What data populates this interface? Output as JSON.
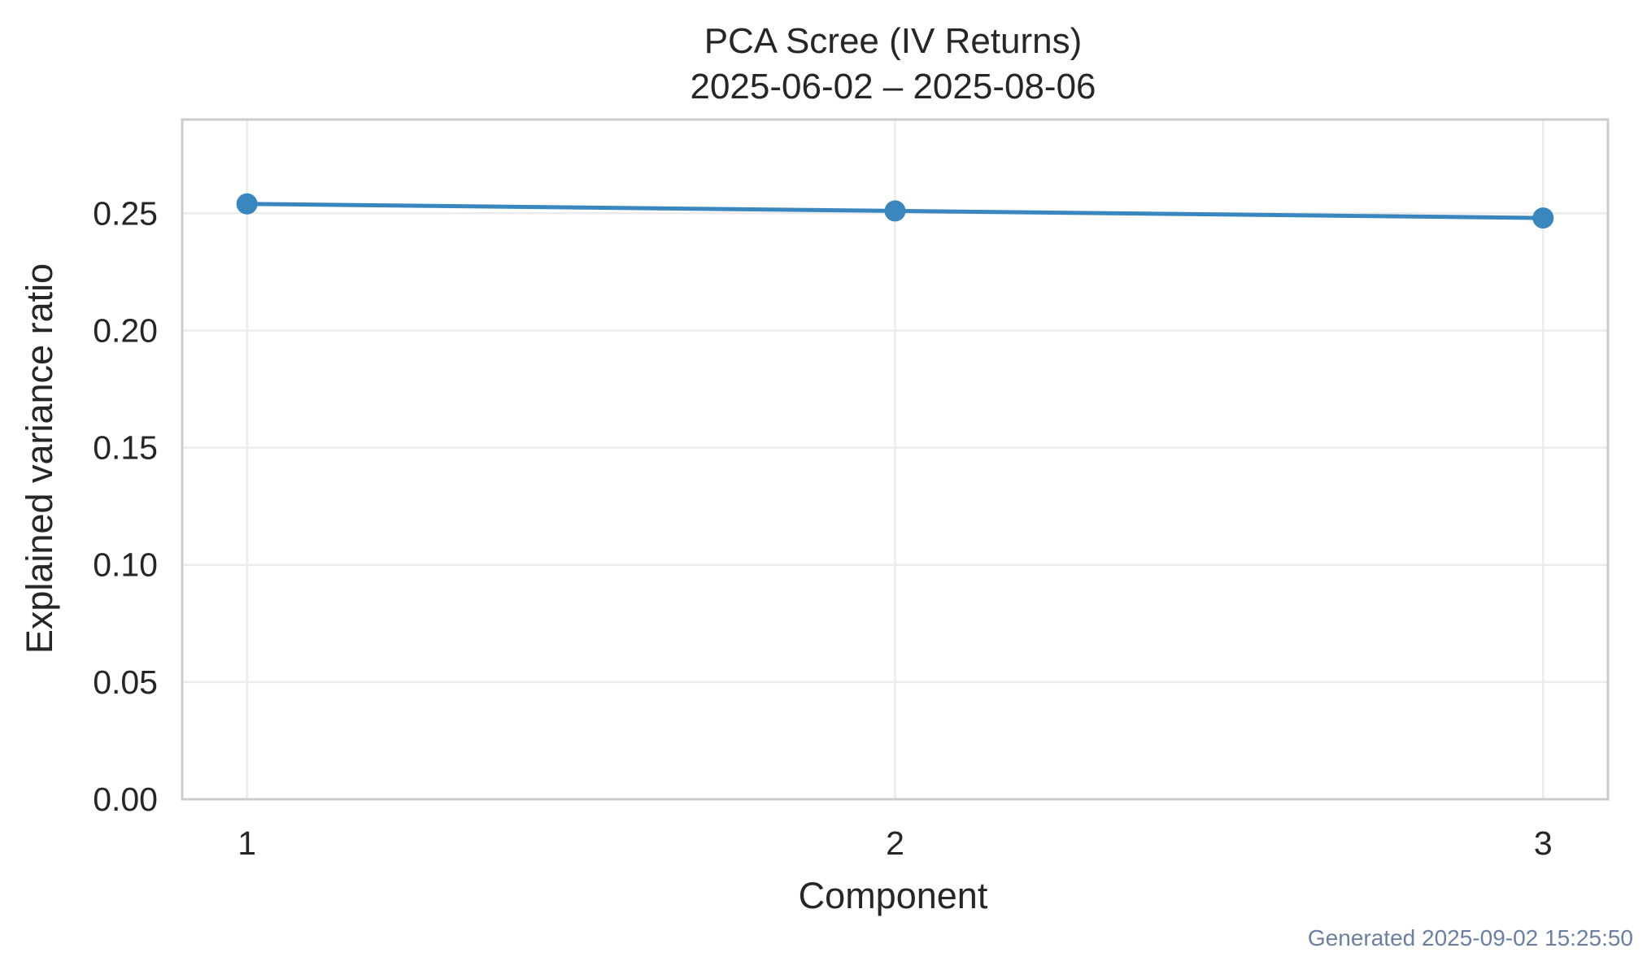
{
  "chart_data": {
    "type": "line",
    "title": "PCA Scree (IV Returns)",
    "subtitle": "2025-06-02 – 2025-08-06",
    "xlabel": "Component",
    "ylabel": "Explained variance ratio",
    "x": [
      1,
      2,
      3
    ],
    "x_tick_labels": [
      "1",
      "2",
      "3"
    ],
    "xlim": [
      0.9,
      3.1
    ],
    "series": [
      {
        "values": [
          0.254,
          0.251,
          0.248
        ],
        "color": "#3a87c0",
        "marker": "circle"
      }
    ],
    "ylim": [
      0,
      0.29
    ],
    "y_ticks": [
      0,
      0.05,
      0.1,
      0.15,
      0.2,
      0.25
    ],
    "y_tick_labels": [
      "0.00",
      "0.05",
      "0.10",
      "0.15",
      "0.20",
      "0.25"
    ],
    "grid": true,
    "legend": "none",
    "colors": {
      "grid": "#ebebeb",
      "frame": "#cccccc",
      "text": "#262626"
    }
  },
  "footer": {
    "generated_text": "Generated 2025-09-02 15:25:50",
    "color": "#6b7fa3"
  }
}
